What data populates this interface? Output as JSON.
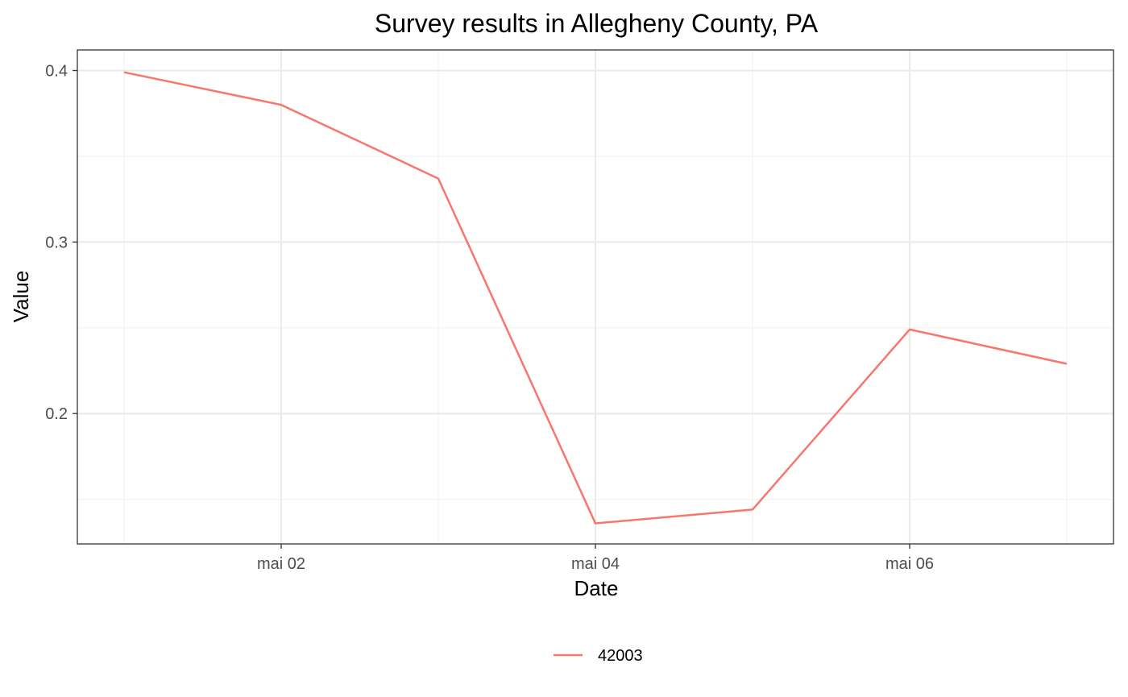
{
  "chart_data": {
    "type": "line",
    "title": "Survey results in Allegheny County, PA",
    "xlabel": "Date",
    "ylabel": "Value",
    "x": [
      "2021-05-01",
      "2021-05-02",
      "2021-05-03",
      "2021-05-04",
      "2021-05-05",
      "2021-05-06",
      "2021-05-07"
    ],
    "x_ticks": [
      {
        "value": "2021-05-02",
        "label": "mai 02"
      },
      {
        "value": "2021-05-04",
        "label": "mai 04"
      },
      {
        "value": "2021-05-06",
        "label": "mai 06"
      }
    ],
    "y_ticks": [
      {
        "value": 0.2,
        "label": "0.2"
      },
      {
        "value": 0.3,
        "label": "0.3"
      },
      {
        "value": 0.4,
        "label": "0.4"
      }
    ],
    "ylim": [
      0.124,
      0.412
    ],
    "grid": true,
    "legend_position": "bottom",
    "series": [
      {
        "name": "42003",
        "color": "#f8766d",
        "values": [
          0.399,
          0.38,
          0.337,
          0.136,
          0.144,
          0.249,
          0.229
        ]
      }
    ]
  }
}
